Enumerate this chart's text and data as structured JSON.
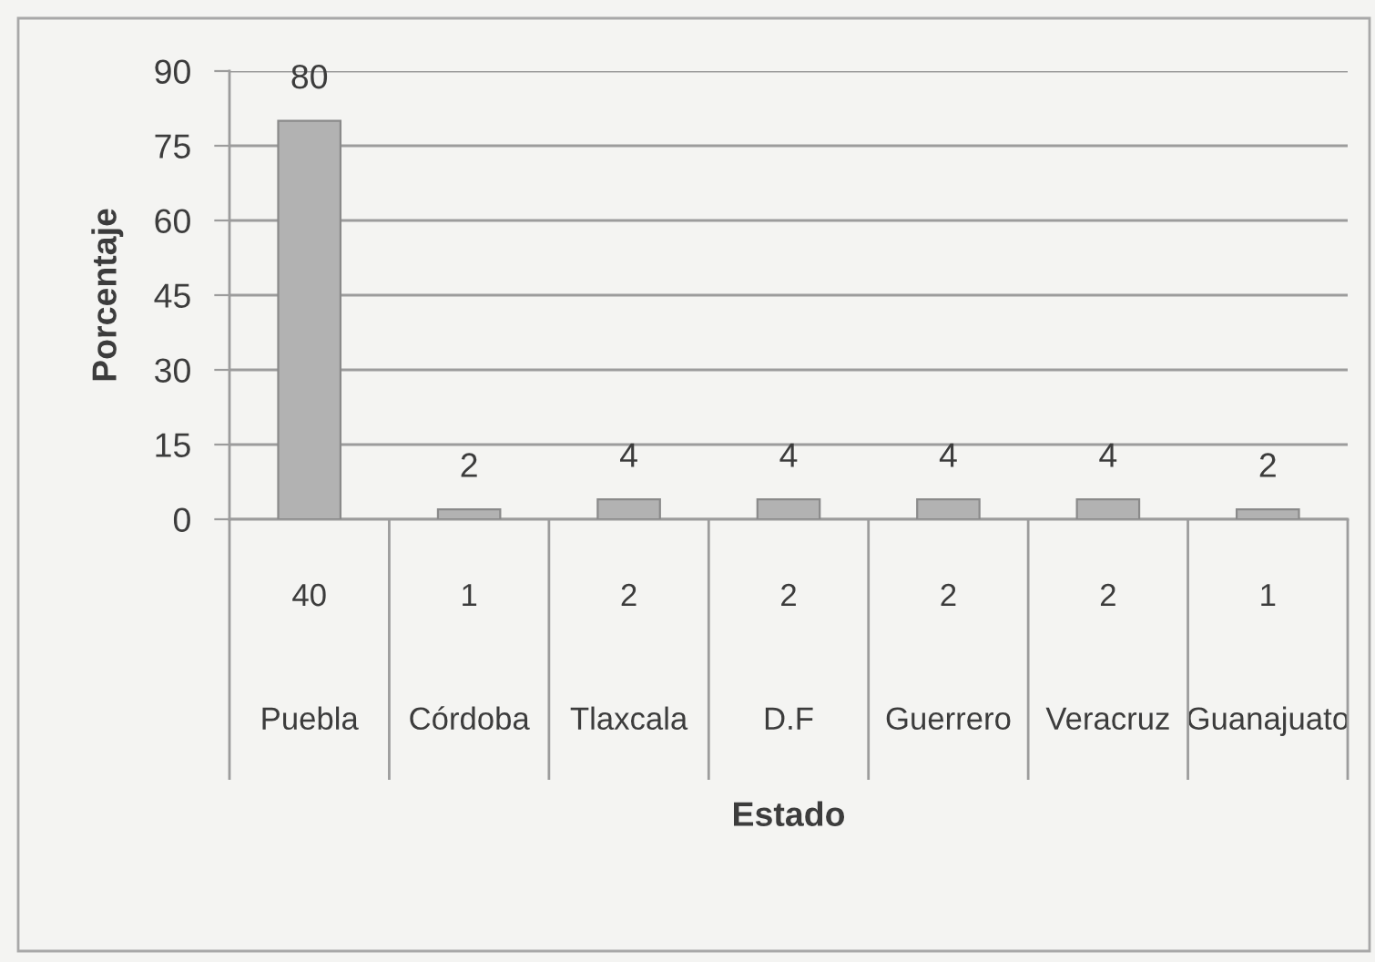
{
  "chart_data": {
    "type": "bar",
    "xlabel": "Estado",
    "ylabel": "Porcentaje",
    "categories": [
      "Puebla",
      "Córdoba",
      "Tlaxcala",
      "D.F",
      "Guerrero",
      "Veracruz",
      "Guanajuato"
    ],
    "values": [
      80,
      2,
      4,
      4,
      4,
      4,
      2
    ],
    "color": "#b2b2b2",
    "ylim": [
      0,
      90
    ],
    "yticks": [
      0,
      15,
      30,
      45,
      60,
      75,
      90
    ],
    "grid": "y",
    "data_labels": true,
    "annotations": [
      "40",
      "1",
      "2",
      "2",
      "2",
      "2",
      "1"
    ]
  }
}
